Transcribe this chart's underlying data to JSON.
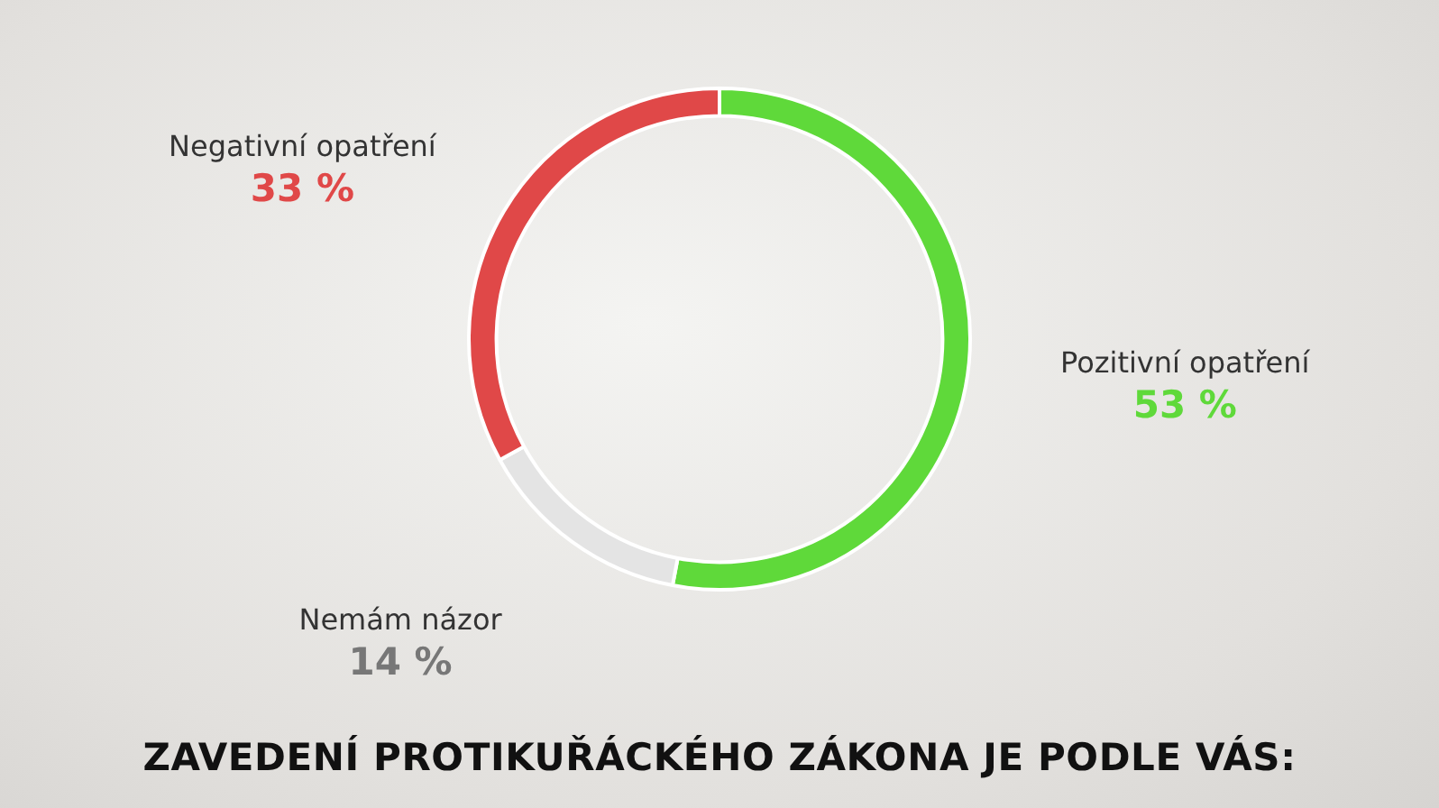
{
  "chart_data": {
    "type": "donut",
    "title": "ZAVEDENÍ PROTIKUŘÁCKÉHO ZÁKONA JE PODLE VÁS:",
    "categories": [
      "Pozitivní opatření",
      "Nemám názor",
      "Negativní opatření"
    ],
    "values": [
      53,
      14,
      33
    ],
    "colors": [
      "#5fd93a",
      "#e4e4e4",
      "#e04848"
    ],
    "value_labels": [
      "53 %",
      "14 %",
      "33 %"
    ],
    "legend": false
  }
}
